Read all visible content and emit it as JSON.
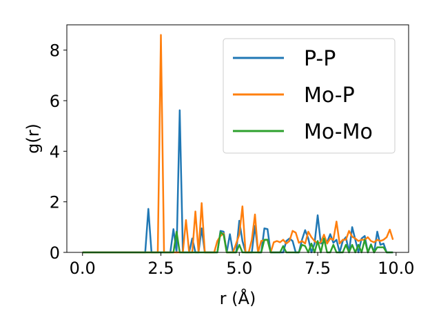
{
  "chart_data": {
    "type": "line",
    "xlabel": "r (Å)",
    "ylabel": "g(r)",
    "xlim": [
      -0.5,
      10.4
    ],
    "ylim": [
      0,
      9
    ],
    "xticks": [
      0.0,
      2.5,
      5.0,
      7.5,
      10.0
    ],
    "xtick_labels": [
      "0.0",
      "2.5",
      "5.0",
      "7.5",
      "10.0"
    ],
    "yticks": [
      0,
      2,
      4,
      6,
      8
    ],
    "ytick_labels": [
      "0",
      "2",
      "4",
      "6",
      "8"
    ],
    "grid": false,
    "legend_position": "upper-right",
    "x": [
      0,
      0.1,
      0.2,
      0.3,
      0.4,
      0.5,
      0.6,
      0.7,
      0.8,
      0.9,
      1.0,
      1.1,
      1.2,
      1.3,
      1.4,
      1.5,
      1.6,
      1.7,
      1.8,
      1.9,
      2.0,
      2.1,
      2.2,
      2.3,
      2.4,
      2.5,
      2.6,
      2.7,
      2.8,
      2.9,
      3.0,
      3.1,
      3.2,
      3.3,
      3.4,
      3.5,
      3.6,
      3.7,
      3.8,
      3.9,
      4.0,
      4.1,
      4.2,
      4.3,
      4.4,
      4.5,
      4.6,
      4.7,
      4.8,
      4.9,
      5.0,
      5.1,
      5.2,
      5.3,
      5.4,
      5.5,
      5.6,
      5.7,
      5.8,
      5.9,
      6.0,
      6.1,
      6.2,
      6.3,
      6.4,
      6.5,
      6.6,
      6.7,
      6.8,
      6.9,
      7.0,
      7.1,
      7.2,
      7.3,
      7.4,
      7.5,
      7.6,
      7.7,
      7.8,
      7.9,
      8.0,
      8.1,
      8.2,
      8.3,
      8.4,
      8.5,
      8.6,
      8.7,
      8.8,
      8.9,
      9.0,
      9.1,
      9.2,
      9.3,
      9.4,
      9.5,
      9.6,
      9.7,
      9.8,
      9.9
    ],
    "series": [
      {
        "name": "P-P",
        "color": "#1f77b4",
        "values": [
          0,
          0,
          0,
          0,
          0,
          0,
          0,
          0,
          0,
          0,
          0,
          0,
          0,
          0,
          0,
          0,
          0,
          0,
          0,
          0,
          0,
          1.72,
          0,
          0,
          0,
          0,
          0,
          0,
          0,
          0.92,
          0,
          5.62,
          0,
          0,
          0,
          0.55,
          0,
          0,
          0.95,
          0,
          0,
          0,
          0,
          0,
          0.85,
          0.82,
          0,
          0.72,
          0,
          0,
          1.25,
          0.45,
          0,
          0,
          0,
          1.05,
          0,
          0,
          0.95,
          0.92,
          0,
          0,
          0,
          0,
          0,
          0.45,
          0.55,
          0.45,
          0,
          0,
          0.5,
          0.88,
          0.55,
          0,
          0.35,
          1.47,
          0.35,
          0.4,
          0.4,
          0.72,
          0.38,
          0.5,
          0,
          0.45,
          0.6,
          0,
          1.0,
          0.5,
          0,
          0.55,
          0.65,
          0,
          0.32,
          0,
          0.82,
          0.3,
          0.35,
          0,
          0,
          0
        ]
      },
      {
        "name": "Mo-P",
        "color": "#ff7f0e",
        "values": [
          0,
          0,
          0,
          0,
          0,
          0,
          0,
          0,
          0,
          0,
          0,
          0,
          0,
          0,
          0,
          0,
          0,
          0,
          0,
          0,
          0,
          0,
          0,
          0,
          0,
          8.6,
          0,
          0,
          0,
          0,
          0,
          0,
          0,
          1.28,
          0,
          0,
          1.62,
          0,
          1.95,
          0,
          0,
          0,
          0,
          0.45,
          0.65,
          0.75,
          0,
          0,
          0,
          0.35,
          0.7,
          1.82,
          0,
          0,
          0.5,
          1.5,
          0,
          0.45,
          0.48,
          0.5,
          0,
          0.4,
          0.45,
          0.4,
          0.5,
          0.35,
          0.45,
          0.85,
          0.78,
          0.38,
          0.45,
          0.35,
          0.82,
          0.6,
          0.45,
          0.35,
          0.4,
          0.7,
          0.35,
          0.55,
          0.5,
          1.22,
          0.35,
          0.5,
          0.5,
          0.85,
          0.62,
          0.55,
          0.45,
          0.5,
          0.5,
          0.6,
          0.45,
          0.4,
          0.5,
          0.45,
          0.5,
          0.6,
          0.9,
          0.5
        ]
      },
      {
        "name": "Mo-Mo",
        "color": "#2ca02c",
        "values": [
          0,
          0,
          0,
          0,
          0,
          0,
          0,
          0,
          0,
          0,
          0,
          0,
          0,
          0,
          0,
          0,
          0,
          0,
          0,
          0,
          0,
          0,
          0,
          0,
          0,
          0,
          0,
          0,
          0,
          0,
          0.82,
          0,
          0,
          0,
          0,
          0,
          0,
          0,
          0,
          0,
          0,
          0,
          0,
          0,
          0.8,
          0.7,
          0,
          0,
          0,
          0,
          0.3,
          0,
          0,
          0,
          0,
          0,
          0,
          0,
          0.5,
          0.5,
          0,
          0,
          0,
          0,
          0.25,
          0,
          0,
          0,
          0,
          0,
          0.3,
          0.25,
          0,
          0.35,
          0,
          0.45,
          0,
          0.55,
          0,
          0,
          0.3,
          0,
          0,
          0,
          0.3,
          0,
          0.3,
          0,
          0.3,
          0,
          0.5,
          0,
          0.3,
          0,
          0.2,
          0.2,
          0.2,
          0,
          0,
          0
        ]
      }
    ]
  }
}
